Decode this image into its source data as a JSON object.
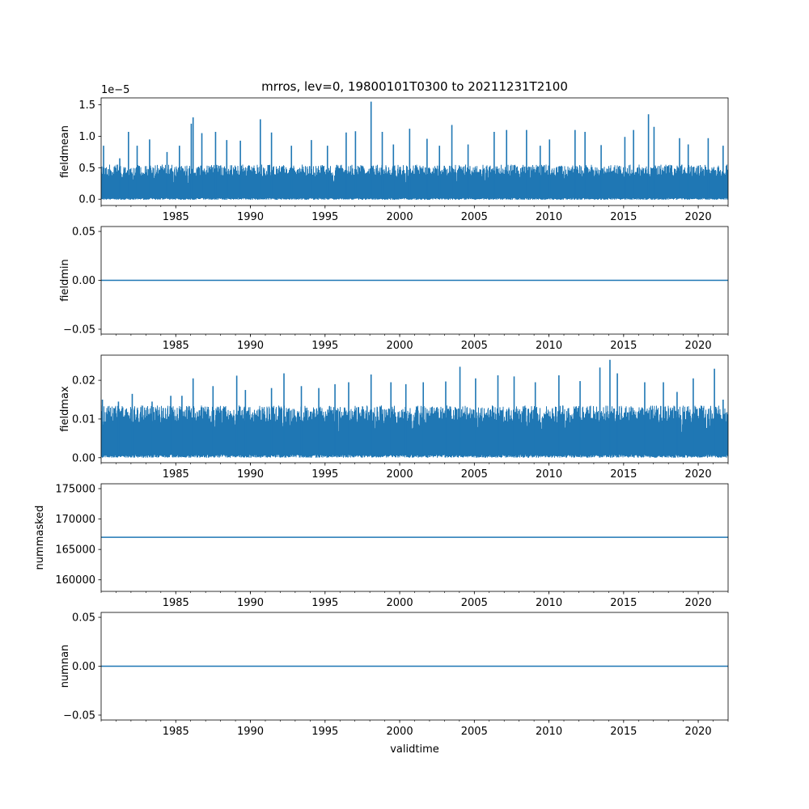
{
  "title": "mrros, lev=0, 19800101T0300 to 20211231T2100",
  "xlabel": "validtime",
  "colors": {
    "series": "#1f77b4"
  },
  "x_range": [
    "1980-01-01",
    "2022-01-01"
  ],
  "x_ticks": [
    "1985",
    "1990",
    "1995",
    "2000",
    "2005",
    "2010",
    "2015",
    "2020"
  ],
  "chart_data": [
    {
      "type": "line",
      "ylabel": "fieldmean",
      "offset_label": "1e−5",
      "ylim": [
        -1e-06,
        1.61e-05
      ],
      "yticks": [
        {
          "v": 0,
          "label": "0.0"
        },
        {
          "v": 5e-06,
          "label": "0.5"
        },
        {
          "v": 1e-05,
          "label": "1.0"
        },
        {
          "v": 1.5e-05,
          "label": "1.5"
        }
      ],
      "series": [
        {
          "style": "dense_band",
          "base": 2e-07,
          "floor": -1e-07,
          "typical_max": 5.5e-06,
          "peaks": [
            [
              "1980-03-01",
              8.5e-06
            ],
            [
              "1981-04-01",
              6.5e-06
            ],
            [
              "1981-11-01",
              1.07e-05
            ],
            [
              "1982-06-01",
              8.5e-06
            ],
            [
              "1983-04-01",
              9.5e-06
            ],
            [
              "1984-06-01",
              7.5e-06
            ],
            [
              "1985-04-01",
              8.5e-06
            ],
            [
              "1986-01-15",
              1.2e-05
            ],
            [
              "1986-03-01",
              1.3e-05
            ],
            [
              "1986-10-01",
              1.05e-05
            ],
            [
              "1987-09-01",
              1.07e-05
            ],
            [
              "1988-06-01",
              9.4e-06
            ],
            [
              "1989-05-01",
              9.3e-06
            ],
            [
              "1990-09-01",
              1.27e-05
            ],
            [
              "1991-06-01",
              1.06e-05
            ],
            [
              "1992-10-01",
              8.5e-06
            ],
            [
              "1994-02-01",
              9.4e-06
            ],
            [
              "1995-03-01",
              8.5e-06
            ],
            [
              "1996-06-01",
              1.06e-05
            ],
            [
              "1997-01-15",
              1.08e-05
            ],
            [
              "1998-02-01",
              1.55e-05
            ],
            [
              "1998-11-01",
              1.07e-05
            ],
            [
              "1999-08-01",
              8.7e-06
            ],
            [
              "2000-09-01",
              1.12e-05
            ],
            [
              "2001-11-01",
              9.6e-06
            ],
            [
              "2002-09-01",
              8.5e-06
            ],
            [
              "2003-07-01",
              1.18e-05
            ],
            [
              "2004-08-01",
              8.7e-06
            ],
            [
              "2006-05-01",
              1.07e-05
            ],
            [
              "2007-03-01",
              1.1e-05
            ],
            [
              "2008-07-01",
              1.1e-05
            ],
            [
              "2009-06-01",
              8.5e-06
            ],
            [
              "2010-01-15",
              9.5e-06
            ],
            [
              "2011-10-01",
              1.1e-05
            ],
            [
              "2012-06-01",
              1.07e-05
            ],
            [
              "2013-07-01",
              8.6e-06
            ],
            [
              "2015-02-01",
              9.9e-06
            ],
            [
              "2015-09-01",
              1.1e-05
            ],
            [
              "2016-09-01",
              1.35e-05
            ],
            [
              "2017-01-15",
              1.15e-05
            ],
            [
              "2018-10-01",
              9.7e-06
            ],
            [
              "2019-05-01",
              8.7e-06
            ],
            [
              "2020-09-01",
              9.7e-06
            ],
            [
              "2021-09-01",
              8.5e-06
            ]
          ]
        }
      ]
    },
    {
      "type": "line",
      "ylabel": "fieldmin",
      "ylim": [
        -0.055,
        0.055
      ],
      "yticks": [
        {
          "v": -0.05,
          "label": "−0.05"
        },
        {
          "v": 0,
          "label": "0.00"
        },
        {
          "v": 0.05,
          "label": "0.05"
        }
      ],
      "series": [
        {
          "style": "constant",
          "x": [
            "1980-01-01",
            "2021-12-31"
          ],
          "y": [
            0,
            0
          ]
        }
      ]
    },
    {
      "type": "line",
      "ylabel": "fieldmax",
      "ylim": [
        -0.0013,
        0.0265
      ],
      "yticks": [
        {
          "v": 0,
          "label": "0.00"
        },
        {
          "v": 0.01,
          "label": "0.01"
        },
        {
          "v": 0.02,
          "label": "0.02"
        }
      ],
      "series": [
        {
          "style": "dense_band",
          "base": 0.0008,
          "floor": 0.0,
          "typical_max": 0.0135,
          "peaks": [
            [
              "1980-02-01",
              0.015
            ],
            [
              "1981-03-01",
              0.0145
            ],
            [
              "1982-02-01",
              0.0165
            ],
            [
              "1983-06-01",
              0.0145
            ],
            [
              "1984-09-01",
              0.016
            ],
            [
              "1985-06-01",
              0.016
            ],
            [
              "1986-03-01",
              0.0205
            ],
            [
              "1987-07-01",
              0.0185
            ],
            [
              "1989-02-01",
              0.0212
            ],
            [
              "1989-09-01",
              0.0175
            ],
            [
              "1991-06-01",
              0.018
            ],
            [
              "1992-04-01",
              0.0218
            ],
            [
              "1993-06-01",
              0.0185
            ],
            [
              "1994-08-01",
              0.018
            ],
            [
              "1995-09-01",
              0.019
            ],
            [
              "1996-08-01",
              0.0195
            ],
            [
              "1998-02-01",
              0.0215
            ],
            [
              "1999-06-01",
              0.0195
            ],
            [
              "2000-06-01",
              0.019
            ],
            [
              "2001-08-01",
              0.0195
            ],
            [
              "2003-02-01",
              0.0197
            ],
            [
              "2004-01-15",
              0.0235
            ],
            [
              "2005-02-01",
              0.0205
            ],
            [
              "2006-08-01",
              0.0213
            ],
            [
              "2007-09-01",
              0.021
            ],
            [
              "2009-02-01",
              0.0195
            ],
            [
              "2010-09-01",
              0.0213
            ],
            [
              "2012-02-01",
              0.0198
            ],
            [
              "2013-06-01",
              0.0233
            ],
            [
              "2014-02-01",
              0.0253
            ],
            [
              "2014-08-01",
              0.0218
            ],
            [
              "2016-06-01",
              0.0195
            ],
            [
              "2017-09-01",
              0.0195
            ],
            [
              "2018-08-01",
              0.017
            ],
            [
              "2019-09-01",
              0.0205
            ],
            [
              "2021-02-01",
              0.023
            ],
            [
              "2021-09-01",
              0.015
            ]
          ]
        }
      ]
    },
    {
      "type": "line",
      "ylabel": "nummasked",
      "ylim": [
        158100,
        175800
      ],
      "yticks": [
        {
          "v": 160000,
          "label": "160000"
        },
        {
          "v": 165000,
          "label": "165000"
        },
        {
          "v": 170000,
          "label": "170000"
        },
        {
          "v": 175000,
          "label": "175000"
        }
      ],
      "series": [
        {
          "style": "constant",
          "x": [
            "1980-01-01",
            "2021-12-31"
          ],
          "y": [
            167000,
            167000
          ]
        }
      ]
    },
    {
      "type": "line",
      "ylabel": "numnan",
      "ylim": [
        -0.055,
        0.055
      ],
      "yticks": [
        {
          "v": -0.05,
          "label": "−0.05"
        },
        {
          "v": 0,
          "label": "0.00"
        },
        {
          "v": 0.05,
          "label": "0.05"
        }
      ],
      "series": [
        {
          "style": "constant",
          "x": [
            "1980-01-01",
            "2021-12-31"
          ],
          "y": [
            0,
            0
          ]
        }
      ]
    }
  ]
}
